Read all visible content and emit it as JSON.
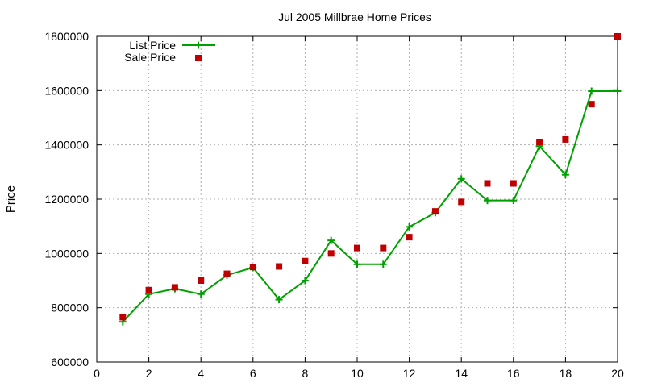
{
  "chart_data": {
    "type": "line",
    "title": "Jul 2005 Millbrae Home Prices",
    "xlabel": "",
    "ylabel": "Price",
    "xlim": [
      0,
      20
    ],
    "ylim": [
      600000,
      1800000
    ],
    "x_ticks": [
      "0",
      "2",
      "4",
      "6",
      "8",
      "10",
      "12",
      "14",
      "16",
      "18",
      "20"
    ],
    "y_ticks": [
      "600000",
      "800000",
      "1000000",
      "1200000",
      "1400000",
      "1600000",
      "1800000"
    ],
    "grid": true,
    "legend_position": "top-left",
    "x": [
      1,
      2,
      3,
      4,
      5,
      6,
      7,
      8,
      9,
      10,
      11,
      12,
      13,
      14,
      15,
      16,
      17,
      18,
      19,
      20
    ],
    "series": [
      {
        "name": "List Price",
        "style": "line-with-plus-markers",
        "color": "#00a000",
        "values": [
          748000,
          850000,
          870000,
          850000,
          920000,
          948000,
          830000,
          900000,
          1048000,
          960000,
          960000,
          1098000,
          1150000,
          1275000,
          1195000,
          1195000,
          1395000,
          1290000,
          1598000,
          1598000
        ]
      },
      {
        "name": "Sale Price",
        "style": "square-markers",
        "color": "#c00000",
        "values": [
          765000,
          865000,
          875000,
          900000,
          925000,
          950000,
          952000,
          972000,
          1000000,
          1020000,
          1020000,
          1060000,
          1155000,
          1190000,
          1258000,
          1258000,
          1410000,
          1420000,
          1550000,
          1800000
        ]
      }
    ]
  }
}
